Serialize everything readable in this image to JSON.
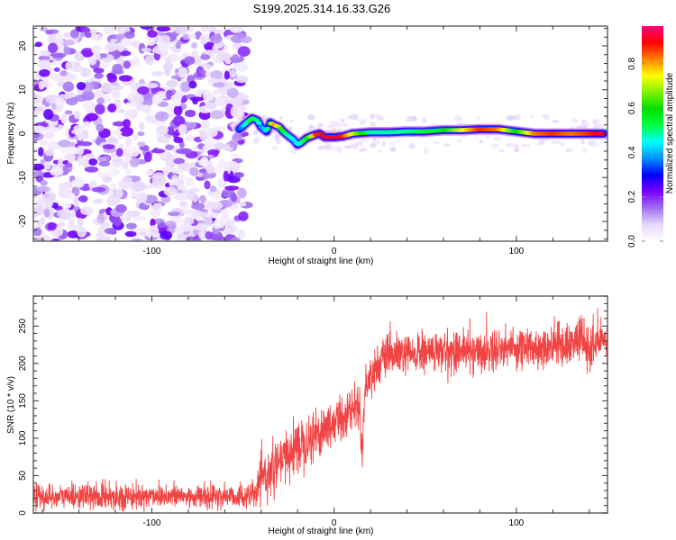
{
  "title": "S199.2025.314.16.33.G26",
  "chart_data": [
    {
      "type": "heatmap",
      "name": "spectrogram",
      "title": "S199.2025.314.16.33.G26",
      "xlabel": "Height of straight line (km)",
      "ylabel": "Frequency (Hz)",
      "xlim": [
        -165,
        150
      ],
      "ylim": [
        -24.5,
        24.5
      ],
      "xticks": [
        -100,
        0,
        100
      ],
      "xtick_labels": [
        "-100",
        "0",
        "100"
      ],
      "yticks": [
        -20,
        -10,
        0,
        10,
        20
      ],
      "ytick_labels": [
        "-20",
        "-10",
        "0",
        "10",
        "20"
      ],
      "noise_region_x": [
        -165,
        -52
      ],
      "signal_track": {
        "x": [
          -52,
          -48,
          -45,
          -42,
          -40,
          -37,
          -35,
          -33,
          -30,
          -28,
          -25,
          -22,
          -20,
          -18,
          -15,
          -12,
          -10,
          -8,
          -5,
          0,
          5,
          10,
          20,
          30,
          40,
          50,
          60,
          70,
          80,
          90,
          100,
          110,
          120,
          130,
          140,
          148
        ],
        "freq_hz": [
          1.0,
          2.5,
          3.5,
          3.0,
          1.5,
          0.5,
          2.5,
          2.0,
          1.5,
          0.5,
          -0.5,
          -1.5,
          -2.5,
          -2.0,
          -1.0,
          -0.5,
          -0.2,
          0.0,
          -0.8,
          -0.8,
          -0.6,
          0.0,
          0.3,
          0.3,
          0.5,
          0.5,
          0.8,
          0.8,
          1.0,
          1.0,
          0.5,
          0.0,
          0.0,
          0.0,
          0.0,
          0.0
        ],
        "amplitude": [
          0.35,
          0.5,
          0.55,
          0.5,
          0.4,
          0.45,
          0.65,
          0.85,
          0.7,
          0.55,
          0.5,
          0.45,
          0.45,
          0.5,
          0.6,
          0.75,
          0.9,
          0.9,
          0.95,
          0.95,
          0.9,
          0.75,
          0.5,
          0.5,
          0.5,
          0.55,
          0.6,
          0.75,
          0.9,
          0.85,
          0.6,
          0.85,
          0.9,
          0.85,
          0.9,
          0.95
        ]
      },
      "colorbar": {
        "label": "Normalized spectral amplitude",
        "range": [
          0.0,
          0.97
        ],
        "ticks": [
          0.0,
          0.2,
          0.4,
          0.6,
          0.8
        ],
        "tick_labels": [
          "0.0",
          "0.2",
          "0.4",
          "0.6",
          "0.8"
        ],
        "colors": [
          "#ffffff",
          "#e8d9fb",
          "#a070f0",
          "#7a00ff",
          "#0000ff",
          "#0090ff",
          "#00ffff",
          "#00ff40",
          "#00e000",
          "#80f000",
          "#ffff00",
          "#ff8000",
          "#ff0000",
          "#ff0080"
        ]
      }
    },
    {
      "type": "line",
      "name": "snr",
      "xlabel": "Height of straight line (km)",
      "ylabel": "SNR (10 * v/v)",
      "xlim": [
        -165,
        150
      ],
      "ylim": [
        0,
        290
      ],
      "xticks": [
        -100,
        0,
        100
      ],
      "xtick_labels": [
        "-100",
        "0",
        "100"
      ],
      "yticks": [
        0,
        50,
        100,
        150,
        200,
        250
      ],
      "ytick_labels": [
        "0",
        "50",
        "100",
        "150",
        "200",
        "250"
      ],
      "color": "#f03030",
      "series": [
        {
          "name": "SNR",
          "x": [
            -165,
            -150,
            -140,
            -130,
            -120,
            -110,
            -100,
            -90,
            -80,
            -70,
            -60,
            -50,
            -45,
            -42,
            -40,
            -35,
            -30,
            -25,
            -20,
            -15,
            -10,
            -5,
            0,
            5,
            10,
            14,
            15,
            17,
            20,
            25,
            30,
            35,
            40,
            50,
            60,
            70,
            80,
            90,
            100,
            110,
            120,
            130,
            135,
            140,
            145,
            150
          ],
          "mean": [
            22,
            22,
            23,
            22,
            23,
            22,
            24,
            23,
            22,
            22,
            23,
            22,
            23,
            30,
            45,
            55,
            65,
            80,
            90,
            100,
            105,
            115,
            120,
            130,
            140,
            145,
            80,
            165,
            185,
            200,
            210,
            212,
            210,
            215,
            215,
            218,
            215,
            220,
            222,
            220,
            225,
            225,
            235,
            215,
            230,
            235
          ],
          "spread": [
            15,
            15,
            15,
            15,
            15,
            15,
            15,
            15,
            15,
            15,
            15,
            15,
            15,
            20,
            25,
            28,
            30,
            32,
            32,
            32,
            32,
            32,
            30,
            28,
            25,
            25,
            20,
            25,
            25,
            25,
            25,
            25,
            25,
            25,
            25,
            25,
            25,
            25,
            25,
            25,
            25,
            25,
            25,
            30,
            30,
            30
          ]
        }
      ]
    }
  ]
}
